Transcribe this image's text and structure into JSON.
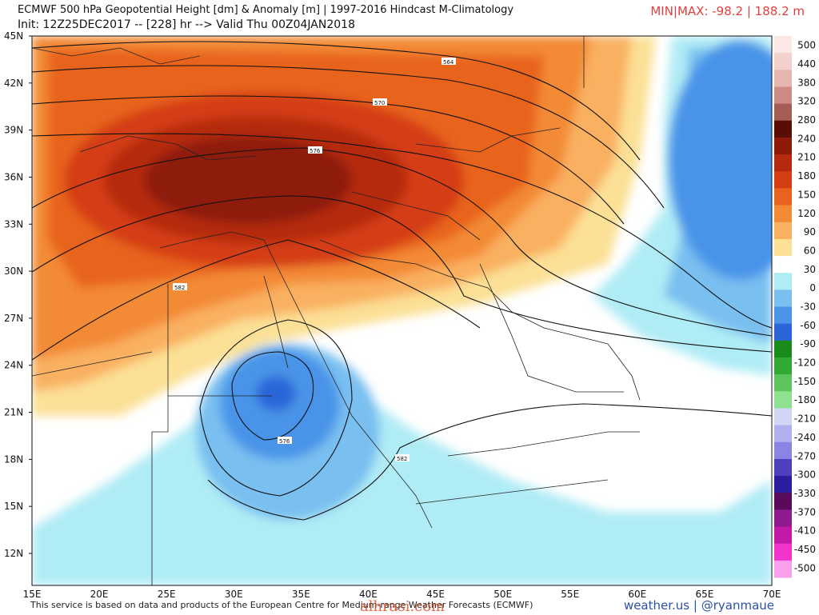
{
  "header": {
    "title": "ECMWF 500 hPa Geopotential Height [dm] & Anomaly [m] | 1997-2016 Hindcast M-Climatology",
    "init": "Init: 12Z25DEC2017 -- [228] hr --> Valid Thu 00Z04JAN2018",
    "minmax": "MIN|MAX: -98.2 | 188.2 m"
  },
  "axes": {
    "lon_labels": [
      "15E",
      "20E",
      "25E",
      "30E",
      "35E",
      "40E",
      "45E",
      "50E",
      "55E",
      "60E",
      "65E",
      "70E"
    ],
    "lat_labels": [
      "45N",
      "42N",
      "39N",
      "36N",
      "33N",
      "30N",
      "27N",
      "24N",
      "21N",
      "18N",
      "15N",
      "12N"
    ]
  },
  "colorbar": {
    "labels": [
      "500",
      "440",
      "380",
      "320",
      "280",
      "240",
      "210",
      "180",
      "150",
      "120",
      "90",
      "60",
      "30",
      "0",
      "-30",
      "-60",
      "-90",
      "-120",
      "-150",
      "-180",
      "-210",
      "-240",
      "-270",
      "-300",
      "-330",
      "-370",
      "-410",
      "-450",
      "-500"
    ],
    "colors": [
      "#fbe7e4",
      "#f3d0cb",
      "#e6b6b0",
      "#cc8c84",
      "#a45e55",
      "#5a0d06",
      "#8e1a08",
      "#b52a0e",
      "#d43e14",
      "#e8631e",
      "#f38a35",
      "#f9b060",
      "#fbe095",
      "#ffffff",
      "#b0ecf5",
      "#79bff0",
      "#4a94e8",
      "#2b66d8",
      "#1a8a1a",
      "#33aa33",
      "#5ec45e",
      "#8fe08f",
      "#d0d6f3",
      "#b0b0ee",
      "#8c84e4",
      "#4e3fbe",
      "#2a1e9e",
      "#5a0a5a",
      "#8e1a8e",
      "#c21aa8",
      "#f234cc",
      "#f9a0ec"
    ]
  },
  "contour_labels": [
    "564",
    "570",
    "576",
    "582",
    "576",
    "582"
  ],
  "footer": {
    "credit_text": "This service is based on data and products of the European Centre for Medium-range Weather Forecasts (ECMWF)",
    "site": "weather.us | @ryanmaue",
    "watermark": "alhrasi.com"
  }
}
